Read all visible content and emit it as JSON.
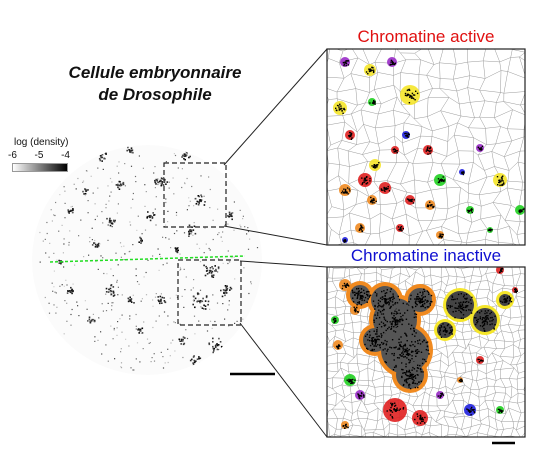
{
  "title": {
    "line1": "Cellule embryonnaire",
    "line2": "de Drosophile"
  },
  "legend": {
    "title": "log (density)",
    "ticks": [
      "-6",
      "-5",
      "-4"
    ],
    "color_low": "#ffffff",
    "color_high": "#000000"
  },
  "panels": {
    "active": {
      "label": "Chromatine active",
      "label_color": "#e01010"
    },
    "inactive": {
      "label": "Chromatine inactive",
      "label_color": "#1010d0"
    }
  },
  "colors": {
    "cluster_red": "#e02020",
    "cluster_orange": "#f08a20",
    "cluster_yellow": "#f5e62a",
    "cluster_purple": "#9a2cc8",
    "cluster_blue": "#2020e0",
    "cluster_green": "#20d020",
    "separator_line": "#22dd22"
  }
}
